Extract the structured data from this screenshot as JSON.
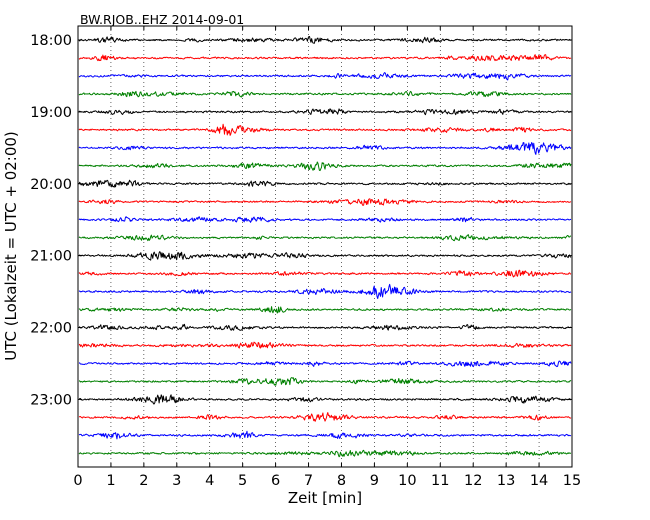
{
  "chart_data": {
    "type": "line",
    "title": "BW.RJOB..EHZ 2014-09-01",
    "xlabel": "Zeit  [min]",
    "ylabel": "UTC (Lokalzeit = UTC + 02:00)",
    "xlim": [
      0,
      15
    ],
    "x_ticks": [
      "0",
      "1",
      "2",
      "3",
      "4",
      "5",
      "6",
      "7",
      "8",
      "9",
      "10",
      "11",
      "12",
      "13",
      "14",
      "15"
    ],
    "y_ticks": [
      "18:00",
      "19:00",
      "20:00",
      "21:00",
      "22:00",
      "23:00"
    ],
    "grid": "vertical dotted",
    "color_cycle": [
      "#000000",
      "#ff0000",
      "#0000ff",
      "#008000"
    ],
    "series": [
      {
        "start": "18:00",
        "color": "#000000"
      },
      {
        "start": "18:15",
        "color": "#ff0000"
      },
      {
        "start": "18:30",
        "color": "#0000ff"
      },
      {
        "start": "18:45",
        "color": "#008000"
      },
      {
        "start": "19:00",
        "color": "#000000"
      },
      {
        "start": "19:15",
        "color": "#ff0000"
      },
      {
        "start": "19:30",
        "color": "#0000ff"
      },
      {
        "start": "19:45",
        "color": "#008000"
      },
      {
        "start": "20:00",
        "color": "#000000"
      },
      {
        "start": "20:15",
        "color": "#ff0000"
      },
      {
        "start": "20:30",
        "color": "#0000ff"
      },
      {
        "start": "20:45",
        "color": "#008000"
      },
      {
        "start": "21:00",
        "color": "#000000"
      },
      {
        "start": "21:15",
        "color": "#ff0000"
      },
      {
        "start": "21:30",
        "color": "#0000ff"
      },
      {
        "start": "21:45",
        "color": "#008000"
      },
      {
        "start": "22:00",
        "color": "#000000"
      },
      {
        "start": "22:15",
        "color": "#ff0000"
      },
      {
        "start": "22:30",
        "color": "#0000ff"
      },
      {
        "start": "22:45",
        "color": "#008000"
      },
      {
        "start": "23:00",
        "color": "#000000"
      },
      {
        "start": "23:15",
        "color": "#ff0000"
      },
      {
        "start": "23:30",
        "color": "#0000ff"
      },
      {
        "start": "23:45",
        "color": "#008000"
      }
    ]
  }
}
